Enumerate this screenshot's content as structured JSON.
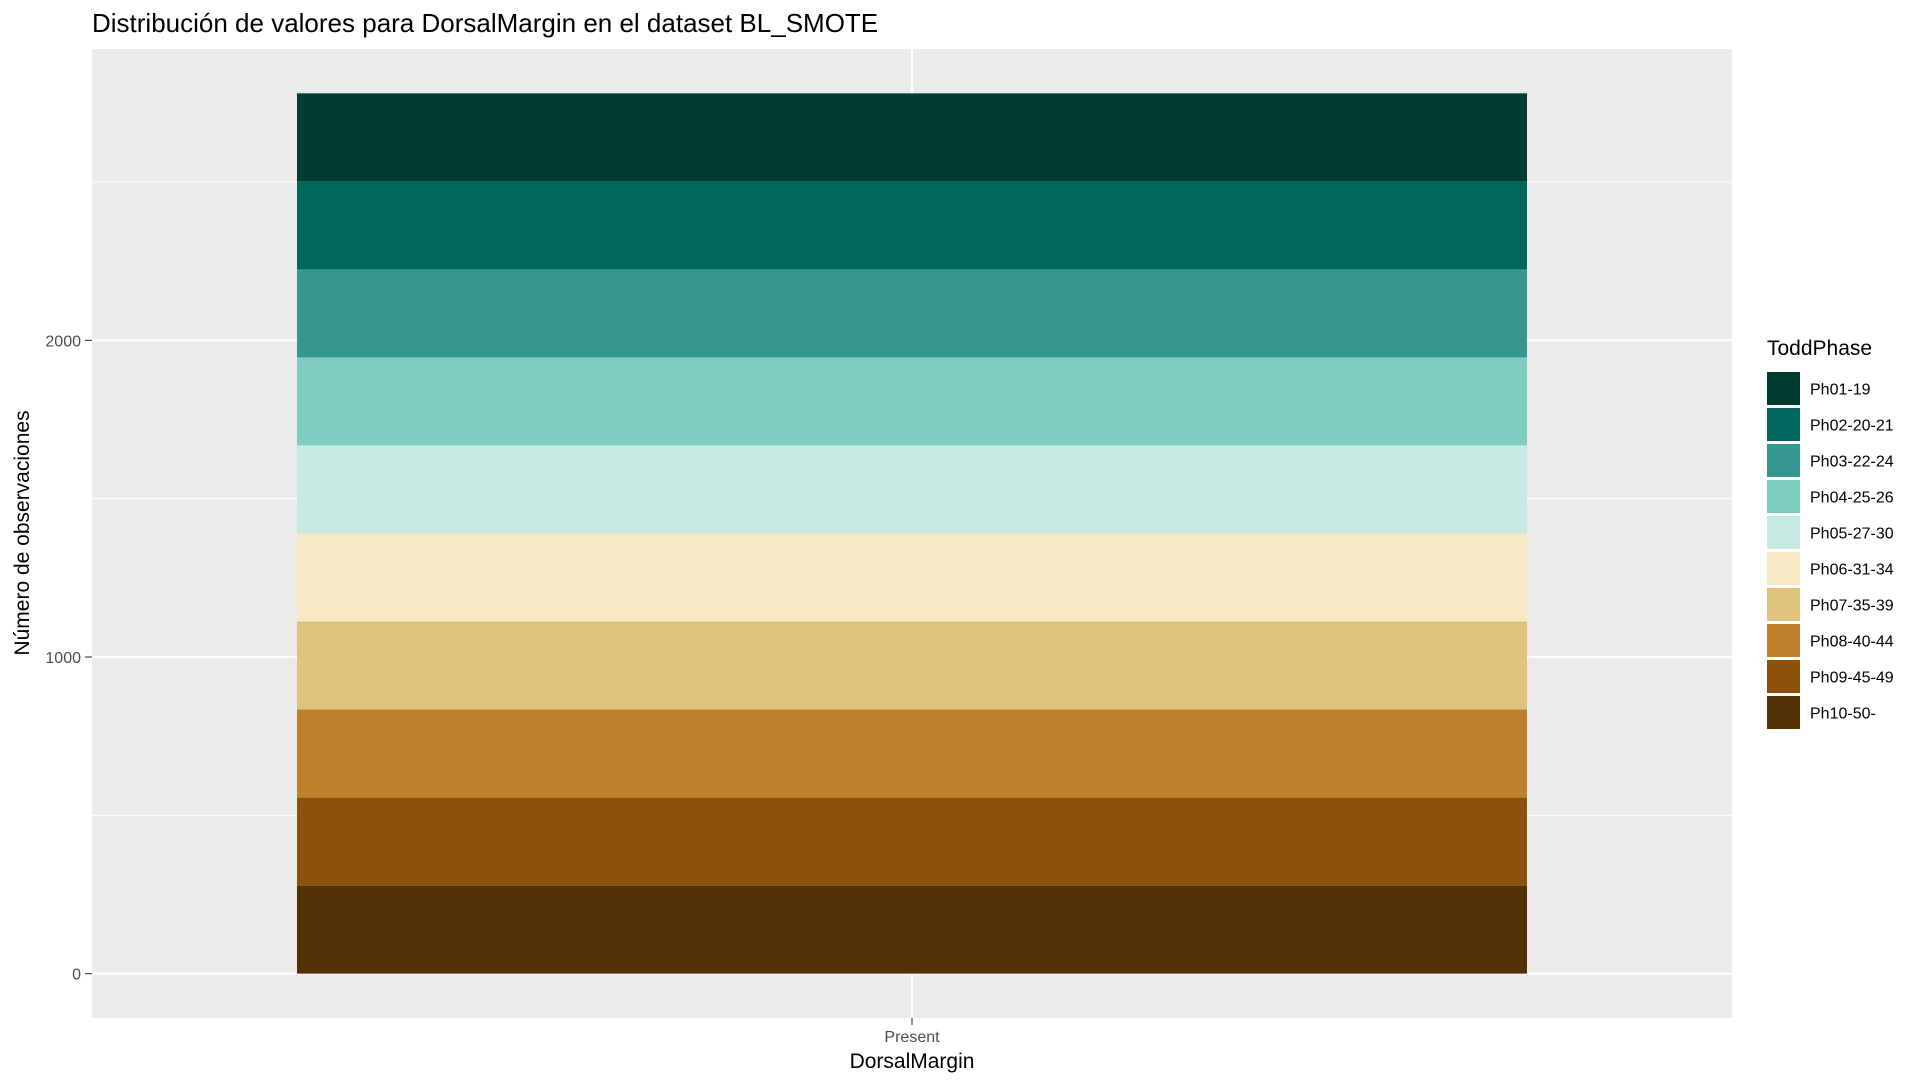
{
  "chart_data": {
    "type": "bar",
    "stacked": true,
    "title": "Distribución de valores para DorsalMargin en el dataset BL_SMOTE",
    "xlabel": "DorsalMargin",
    "ylabel": "Número de observaciones",
    "categories": [
      "Present"
    ],
    "ylim": [
      -140,
      2920
    ],
    "yticks": [
      0,
      1000,
      2000
    ],
    "grid": true,
    "legend": {
      "title": "ToddPhase",
      "placement": "right"
    },
    "series": [
      {
        "name": "Ph01-19",
        "values": [
          278
        ],
        "color": "#003C30"
      },
      {
        "name": "Ph02-20-21",
        "values": [
          278
        ],
        "color": "#01665E"
      },
      {
        "name": "Ph03-22-24",
        "values": [
          278
        ],
        "color": "#35978F"
      },
      {
        "name": "Ph04-25-26",
        "values": [
          278
        ],
        "color": "#80CDC1"
      },
      {
        "name": "Ph05-27-30",
        "values": [
          278
        ],
        "color": "#C7EAE5"
      },
      {
        "name": "Ph06-31-34",
        "values": [
          278
        ],
        "color": "#F6E8C3"
      },
      {
        "name": "Ph07-35-39",
        "values": [
          278
        ],
        "color": "#DFC27D"
      },
      {
        "name": "Ph08-40-44",
        "values": [
          278
        ],
        "color": "#BF812D"
      },
      {
        "name": "Ph09-45-49",
        "values": [
          278
        ],
        "color": "#8C510A"
      },
      {
        "name": "Ph10-50-",
        "values": [
          278
        ],
        "color": "#543005"
      }
    ]
  }
}
